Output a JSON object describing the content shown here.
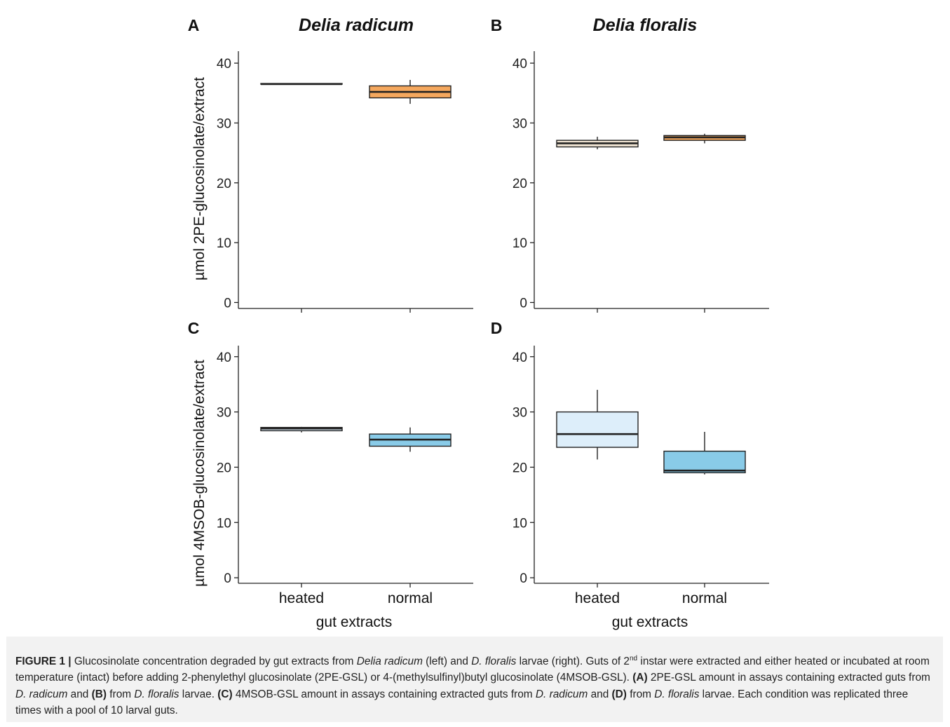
{
  "figure": {
    "column_titles": [
      "Delia radicum",
      "Delia floralis"
    ],
    "panel_letters": [
      "A",
      "B",
      "C",
      "D"
    ],
    "ylabels": [
      "µmol 2PE-glucosinolate/extract",
      "µmol 4MSOB-glucosinolate/extract"
    ],
    "xlabel": "gut extracts"
  },
  "chart_data": [
    {
      "type": "box",
      "panel": "A",
      "title": "Delia radicum",
      "categories": [
        "heated",
        "normal"
      ],
      "boxes": [
        {
          "category": "heated",
          "min": 36.5,
          "q1": 36.5,
          "median": 36.5,
          "q3": 36.6,
          "max": 36.6,
          "color": "#f2e6d4"
        },
        {
          "category": "normal",
          "min": 33.2,
          "q1": 34.2,
          "median": 35.2,
          "q3": 36.2,
          "max": 37.2,
          "color": "#f5a85e"
        }
      ],
      "ylabel": "µmol 2PE-glucosinolate/extract",
      "yticks": [
        0,
        10,
        20,
        30,
        40
      ],
      "ylim": [
        -1,
        42
      ],
      "grid": false
    },
    {
      "type": "box",
      "panel": "B",
      "title": "Delia floralis",
      "categories": [
        "heated",
        "normal"
      ],
      "boxes": [
        {
          "category": "heated",
          "min": 25.6,
          "q1": 26.0,
          "median": 26.6,
          "q3": 27.1,
          "max": 27.7,
          "color": "#f2e6d4"
        },
        {
          "category": "normal",
          "min": 26.6,
          "q1": 27.1,
          "median": 27.6,
          "q3": 27.9,
          "max": 28.2,
          "color": "#f5a85e"
        }
      ],
      "yticks": [
        0,
        10,
        20,
        30,
        40
      ],
      "ylim": [
        -1,
        42
      ],
      "grid": false
    },
    {
      "type": "box",
      "panel": "C",
      "categories": [
        "heated",
        "normal"
      ],
      "boxes": [
        {
          "category": "heated",
          "min": 26.3,
          "q1": 26.6,
          "median": 27.0,
          "q3": 27.2,
          "max": 27.3,
          "color": "#ddeefa"
        },
        {
          "category": "normal",
          "min": 22.8,
          "q1": 23.8,
          "median": 25.0,
          "q3": 26.0,
          "max": 27.2,
          "color": "#89cbe8"
        }
      ],
      "ylabel": "µmol 4MSOB-glucosinolate/extract",
      "xlabel": "gut extracts",
      "yticks": [
        0,
        10,
        20,
        30,
        40
      ],
      "ylim": [
        -1,
        42
      ],
      "grid": false
    },
    {
      "type": "box",
      "panel": "D",
      "categories": [
        "heated",
        "normal"
      ],
      "boxes": [
        {
          "category": "heated",
          "min": 21.4,
          "q1": 23.6,
          "median": 26.0,
          "q3": 30.0,
          "max": 34.0,
          "color": "#ddeefa"
        },
        {
          "category": "normal",
          "min": 18.7,
          "q1": 19.0,
          "median": 19.4,
          "q3": 22.9,
          "max": 26.4,
          "color": "#89cbe8"
        }
      ],
      "xlabel": "gut extracts",
      "yticks": [
        0,
        10,
        20,
        30,
        40
      ],
      "ylim": [
        -1,
        42
      ],
      "grid": false
    }
  ],
  "caption": {
    "label": "FIGURE 1 |",
    "t1": " Glucosinolate concentration degraded by gut extracts from ",
    "t2": "Delia radicum",
    "t3": " (left) and ",
    "t4": "D. floralis",
    "t5": " larvae (right). Guts of 2",
    "t6": "nd",
    "t7": " instar were extracted and either heated or incubated at room temperature (intact) before adding 2-phenylethyl glucosinolate (2PE-GSL) or 4-(methylsulfinyl)butyl glucosinolate (4MSOB-GSL). ",
    "t8": "(A)",
    "t9": " 2PE-GSL amount in assays containing extracted guts from ",
    "t10": "D. radicum",
    "t11": " and ",
    "t12": "(B)",
    "t13": " from ",
    "t14": "D. floralis",
    "t15": " larvae. ",
    "t16": "(C)",
    "t17": " 4MSOB-GSL amount in assays containing extracted guts from ",
    "t18": "D. radicum",
    "t19": " and ",
    "t20": "(D)",
    "t21": " from ",
    "t22": "D. floralis",
    "t23": " larvae. Each condition was replicated three times with a pool of 10 larval guts."
  }
}
